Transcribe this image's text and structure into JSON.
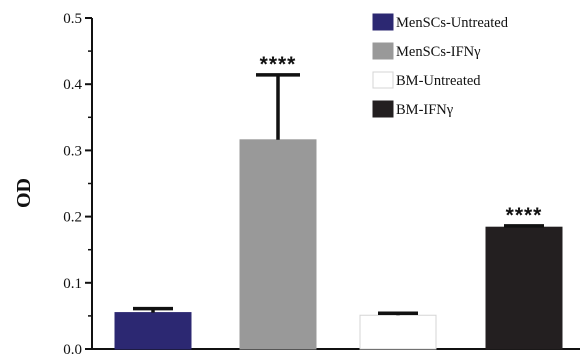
{
  "chart_data": {
    "type": "bar",
    "title": "",
    "xlabel": "",
    "ylabel": "OD",
    "ylim": [
      0.0,
      0.5
    ],
    "yticks": [
      "0.0",
      "0.1",
      "0.2",
      "0.3",
      "0.4",
      "0.5"
    ],
    "grid": false,
    "legend_position": "top-right",
    "categories": [
      "MenSCs-Untreated",
      "MenSCs-IFNγ",
      "BM-Untreated",
      "BM-IFNγ"
    ],
    "values": [
      0.055,
      0.316,
      0.051,
      0.184
    ],
    "errors": [
      0.006,
      0.098,
      0.003,
      0.002
    ],
    "significance": [
      "",
      "****",
      "",
      "****"
    ],
    "colors": [
      "#2c2872",
      "#999999",
      "#ffffff",
      "#231f20"
    ]
  }
}
